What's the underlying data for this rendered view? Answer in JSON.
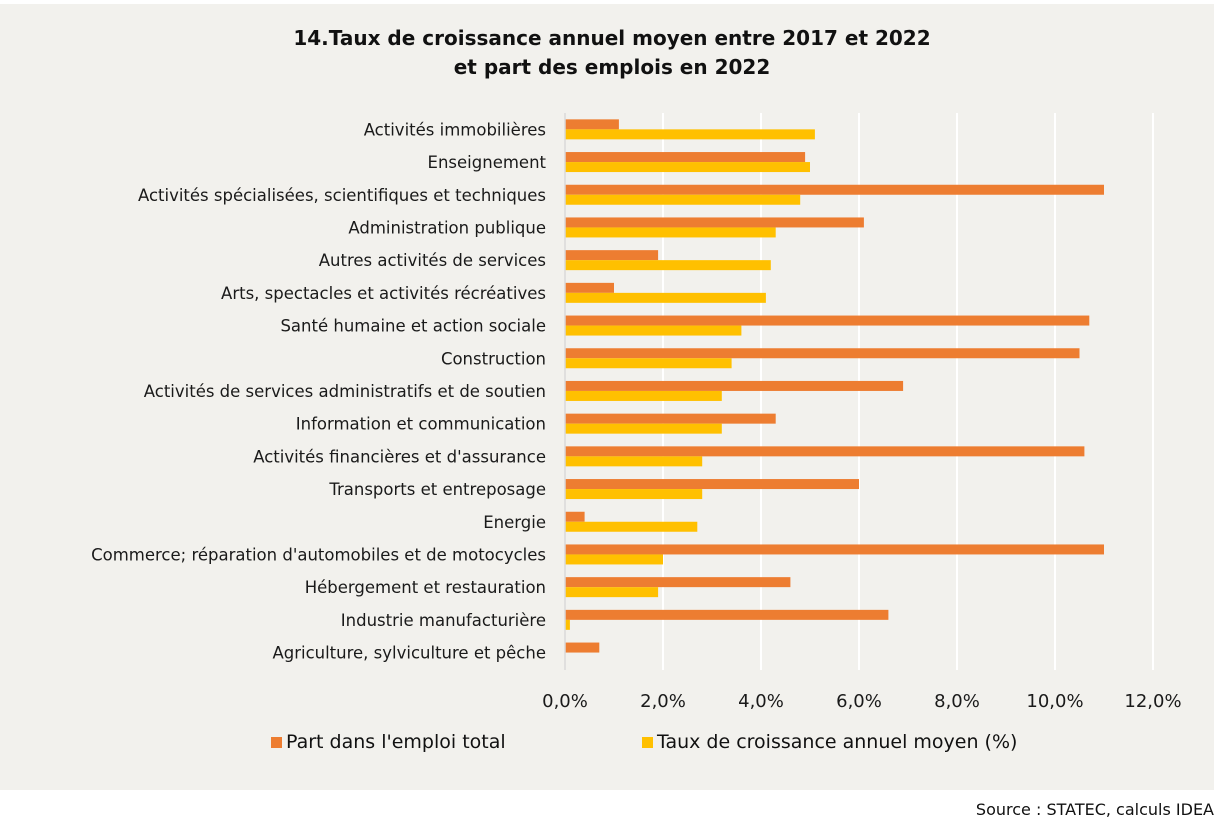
{
  "chart_data": {
    "type": "bar",
    "orientation": "horizontal",
    "title": "14.Taux de croissance annuel moyen entre 2017 et 2022",
    "subtitle": "et part des emplois en 2022",
    "xlabel": "",
    "ylabel": "",
    "xlim": [
      0,
      12
    ],
    "x_ticks": [
      "0,0%",
      "2,0%",
      "4,0%",
      "6,0%",
      "8,0%",
      "10,0%",
      "12,0%"
    ],
    "x_tick_values": [
      0,
      2,
      4,
      6,
      8,
      10,
      12
    ],
    "grid": true,
    "legend_position": "bottom",
    "categories": [
      "Activités immobilières",
      "Enseignement",
      "Activités spécialisées, scientifiques et techniques",
      "Administration publique",
      "Autres activités de services",
      "Arts, spectacles et activités récréatives",
      "Santé humaine et action sociale",
      "Construction",
      "Activités de services administratifs et de soutien",
      "Information et communication",
      "Activités financières et d'assurance",
      "Transports et entreposage",
      "Energie",
      "Commerce; réparation d'automobiles et de motocycles",
      "Hébergement et restauration",
      "Industrie manufacturière",
      "Agriculture, sylviculture et pêche"
    ],
    "series": [
      {
        "name": "Part dans l'emploi total",
        "color": "#ed7d31",
        "values": [
          1.1,
          4.9,
          11.0,
          6.1,
          1.9,
          1.0,
          10.7,
          10.5,
          6.9,
          4.3,
          10.6,
          6.0,
          0.4,
          11.0,
          4.6,
          6.6,
          0.7
        ]
      },
      {
        "name": "Taux de croissance annuel moyen (%)",
        "color": "#ffc000",
        "values": [
          5.1,
          5.0,
          4.8,
          4.3,
          4.2,
          4.1,
          3.6,
          3.4,
          3.2,
          3.2,
          2.8,
          2.8,
          2.7,
          2.0,
          1.9,
          0.1,
          0.0
        ]
      }
    ]
  },
  "source": "Source : STATEC, calculs IDEA"
}
